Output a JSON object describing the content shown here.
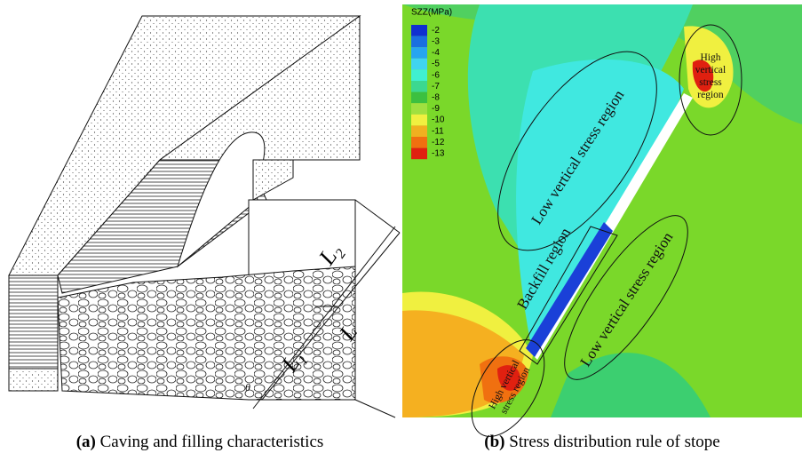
{
  "panel_a": {
    "label": "(a)",
    "caption": "Caving and filling characteristics",
    "dimensions": [
      {
        "main": "L",
        "sub": "2"
      },
      {
        "main": "L"
      },
      {
        "main": "L",
        "sub": "1"
      },
      {
        "main": "θ"
      }
    ]
  },
  "panel_b": {
    "label": "(b)",
    "caption": "Stress distribution rule of stope",
    "legend": {
      "title": "SZZ(MPa)",
      "levels": [
        -2,
        -3,
        -4,
        -5,
        -6,
        -7,
        -8,
        -9,
        -10,
        -11,
        -12,
        -13
      ],
      "colors": [
        "#1030d0",
        "#1a6fe0",
        "#27a5f0",
        "#40d4f0",
        "#40f0d0",
        "#3cd890",
        "#3cc040",
        "#a0e040",
        "#f0f040",
        "#f0b020",
        "#f07010",
        "#e02010"
      ]
    },
    "regions": [
      "Low vertical stress region",
      "Backfill region",
      "Low vertical stress region"
    ],
    "high_region_top": [
      "High",
      "vertical",
      "stress",
      "region"
    ],
    "high_region_bottom": [
      "High vertical",
      "stress region"
    ]
  }
}
